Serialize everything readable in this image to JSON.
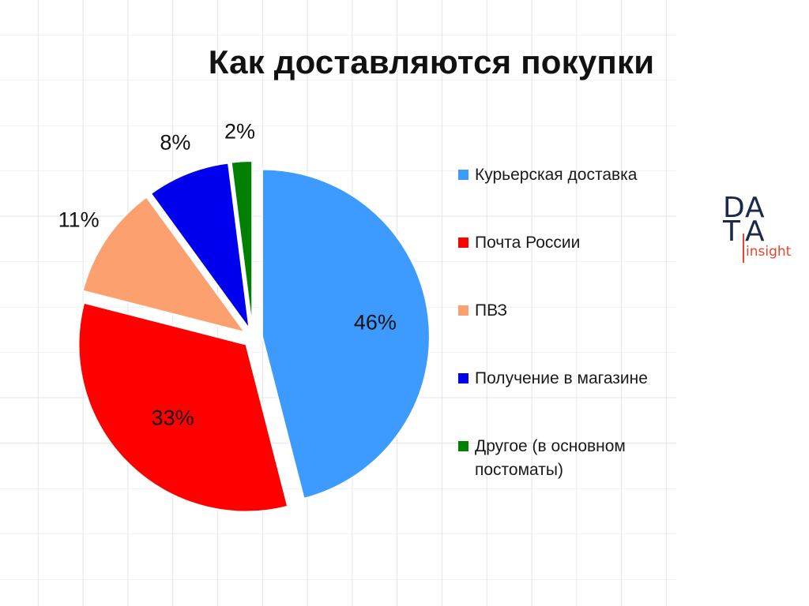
{
  "title": "Как доставляются покупки",
  "logo": {
    "letters": [
      "D",
      "A",
      "T",
      "A"
    ],
    "word": "insight",
    "letter_color": "#1b2a4a",
    "accent_color": "#e8452c"
  },
  "chart_data": {
    "type": "pie",
    "title": "Как доставляются покупки",
    "legend_position": "right",
    "exploded": true,
    "start_angle": "12 o'clock, clockwise",
    "slices": [
      {
        "label": "Курьерская доставка",
        "value": 46,
        "value_label": "46%",
        "color": "#3d9bff"
      },
      {
        "label": "Почта России",
        "value": 33,
        "value_label": "33%",
        "color": "#ff0000"
      },
      {
        "label": "ПВЗ",
        "value": 11,
        "value_label": "11%",
        "color": "#fca070"
      },
      {
        "label": "Получение в магазине",
        "value": 8,
        "value_label": "8%",
        "color": "#0000ee"
      },
      {
        "label": "Другое (в основном постоматы)",
        "value": 2,
        "value_label": "2%",
        "color": "#008000"
      }
    ]
  }
}
